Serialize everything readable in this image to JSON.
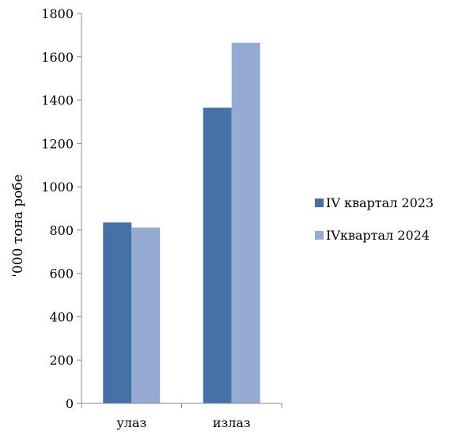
{
  "chart_data": {
    "type": "bar",
    "title": "",
    "xlabel": "",
    "ylabel": "'000 тона робе",
    "categories": [
      "улаз",
      "излаз"
    ],
    "series": [
      {
        "name": "IV квартал 2023",
        "color": "#4472a8",
        "values": [
          835,
          1365
        ]
      },
      {
        "name": "IVквартал 2024",
        "color": "#95abd4",
        "values": [
          812,
          1665
        ]
      }
    ],
    "ylim": [
      0,
      1800
    ],
    "yticks": [
      0,
      200,
      400,
      600,
      800,
      1000,
      1200,
      1400,
      1600,
      1800
    ],
    "grid": false,
    "legend": "right"
  }
}
